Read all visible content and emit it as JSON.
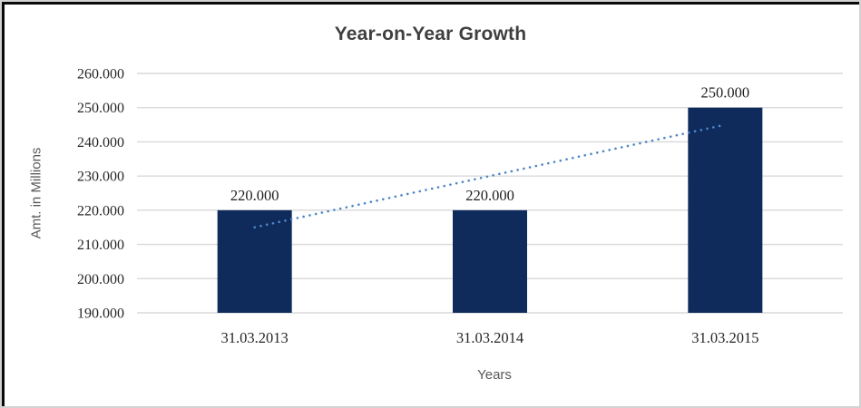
{
  "chart_data": {
    "type": "bar",
    "title": "Year-on-Year Growth",
    "xlabel": "Years",
    "ylabel": "Amt. in Millions",
    "categories": [
      "31.03.2013",
      "31.03.2014",
      "31.03.2015"
    ],
    "values": [
      220000,
      220000,
      250000
    ],
    "data_labels": [
      "220.000",
      "220.000",
      "250.000"
    ],
    "ylim": [
      190000,
      260000
    ],
    "ytick_step": 10000,
    "ytick_labels": [
      "190.000",
      "200.000",
      "210.000",
      "220.000",
      "230.000",
      "240.000",
      "250.000",
      "260.000"
    ],
    "grid": "horizontal-only",
    "legend": "none",
    "trendline": {
      "style": "dotted",
      "color": "#4f86c8",
      "values": [
        215000,
        230000,
        245000
      ]
    },
    "colors": {
      "bar": "#0e2b5c",
      "gridline": "#d9d9d9",
      "tick_text": "#262626",
      "data_label_text": "#1f1f1f",
      "title_text": "#3f3f3f",
      "axis_title_text": "#595959"
    }
  }
}
